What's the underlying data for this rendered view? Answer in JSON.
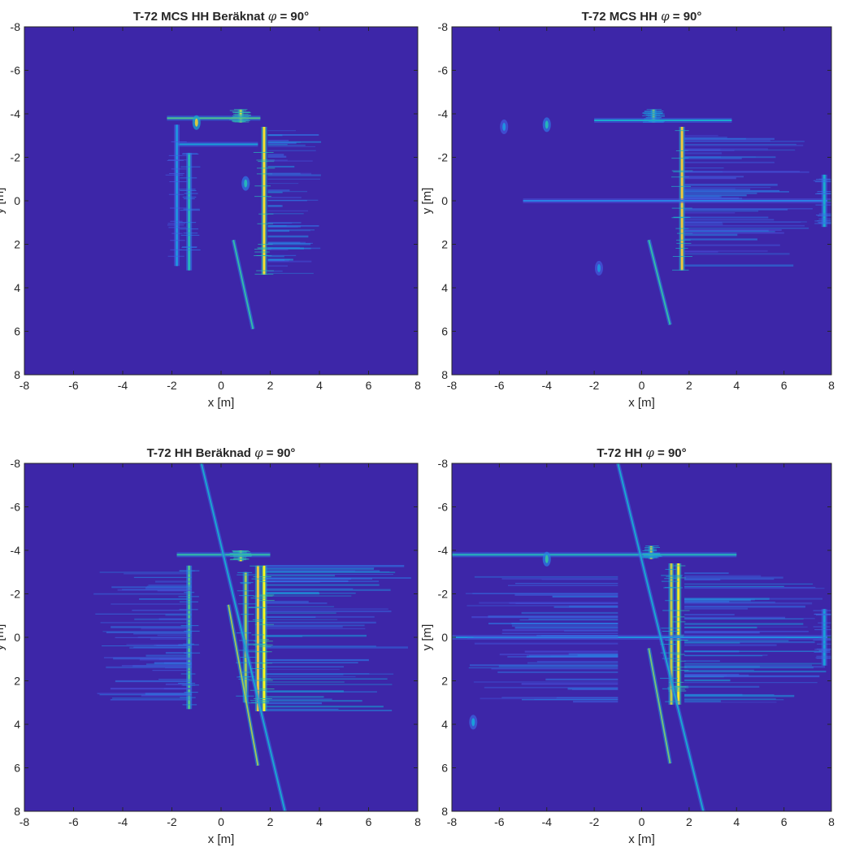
{
  "figure": {
    "background_color": "#ffffff",
    "plot_background_color": "#3d26a8",
    "colormap": [
      "#3d26a8",
      "#4a4bd9",
      "#2c7de8",
      "#14a7d5",
      "#38c29d",
      "#aeca4e",
      "#f2c83a",
      "#f9f920"
    ]
  },
  "chart_data": [
    {
      "type": "heatmap",
      "title_prefix": "T-72 MCS HH Beräknat ",
      "title_symbol": "φ",
      "title_suffix": " = 90°",
      "xlabel": "x [m]",
      "ylabel": "y [m]",
      "xlim": [
        -8,
        8
      ],
      "ylim": [
        -8,
        8
      ],
      "y_direction": "reversed",
      "xticks": [
        "-8",
        "-6",
        "-4",
        "-2",
        "0",
        "2",
        "4",
        "6",
        "8"
      ],
      "yticks": [
        "-8",
        "-6",
        "-4",
        "-2",
        "0",
        "2",
        "4",
        "6",
        "8"
      ],
      "features": [
        {
          "kind": "vline",
          "x": 1.75,
          "y": [
            -3.4,
            3.4
          ],
          "intensity": 0.92
        },
        {
          "kind": "vline",
          "x": 0.8,
          "y": [
            -4.2,
            -3.6
          ],
          "intensity": 0.95
        },
        {
          "kind": "hline",
          "y": -3.8,
          "x": [
            -2.2,
            1.6
          ],
          "intensity": 0.6
        },
        {
          "kind": "hline",
          "y": -2.6,
          "x": [
            -1.8,
            1.5
          ],
          "intensity": 0.4
        },
        {
          "kind": "vline",
          "x": -1.3,
          "y": [
            -2.2,
            3.2
          ],
          "intensity": 0.5
        },
        {
          "kind": "vline",
          "x": -1.8,
          "y": [
            -3.5,
            3.0
          ],
          "intensity": 0.35
        },
        {
          "kind": "line",
          "from": [
            0.5,
            1.8
          ],
          "to": [
            1.3,
            5.9
          ],
          "intensity": 0.55
        },
        {
          "kind": "blob",
          "x": -1.0,
          "y": -3.6,
          "intensity": 0.8
        },
        {
          "kind": "blob",
          "x": 1.0,
          "y": -0.8,
          "intensity": 0.5
        },
        {
          "kind": "flare",
          "x": 1.9,
          "y": [
            -3.4,
            3.4
          ],
          "extent": 2.2,
          "intensity": 0.35
        }
      ]
    },
    {
      "type": "heatmap",
      "title_prefix": "T-72 MCS HH ",
      "title_symbol": "φ",
      "title_suffix": " = 90°",
      "xlabel": "x [m]",
      "ylabel": "y [m]",
      "xlim": [
        -8,
        8
      ],
      "ylim": [
        -8,
        8
      ],
      "y_direction": "reversed",
      "xticks": [
        "-8",
        "-6",
        "-4",
        "-2",
        "0",
        "2",
        "4",
        "6",
        "8"
      ],
      "yticks": [
        "-8",
        "-6",
        "-4",
        "-2",
        "0",
        "2",
        "4",
        "6",
        "8"
      ],
      "features": [
        {
          "kind": "vline",
          "x": 1.7,
          "y": [
            -3.4,
            3.2
          ],
          "intensity": 0.85
        },
        {
          "kind": "vline",
          "x": 0.5,
          "y": [
            -4.2,
            -3.6
          ],
          "intensity": 0.7
        },
        {
          "kind": "hline",
          "y": -3.7,
          "x": [
            -2.0,
            3.8
          ],
          "intensity": 0.45
        },
        {
          "kind": "hline",
          "y": 0.0,
          "x": [
            -5.0,
            8.0
          ],
          "intensity": 0.3
        },
        {
          "kind": "line",
          "from": [
            0.3,
            1.8
          ],
          "to": [
            1.2,
            5.7
          ],
          "intensity": 0.55
        },
        {
          "kind": "blob",
          "x": -4.0,
          "y": -3.5,
          "intensity": 0.5
        },
        {
          "kind": "blob",
          "x": -5.8,
          "y": -3.4,
          "intensity": 0.35
        },
        {
          "kind": "blob",
          "x": -1.8,
          "y": 3.1,
          "intensity": 0.35
        },
        {
          "kind": "vline",
          "x": 7.7,
          "y": [
            -1.2,
            1.2
          ],
          "intensity": 0.45
        },
        {
          "kind": "flare",
          "x": 1.8,
          "y": [
            -3.0,
            3.0
          ],
          "extent": 5.5,
          "intensity": 0.3
        }
      ]
    },
    {
      "type": "heatmap",
      "title_prefix": "T-72 HH Beräknad ",
      "title_symbol": "φ",
      "title_suffix": " = 90°",
      "xlabel": "x [m]",
      "ylabel": "y [m]",
      "xlim": [
        -8,
        8
      ],
      "ylim": [
        -8,
        8
      ],
      "y_direction": "reversed",
      "xticks": [
        "-8",
        "-6",
        "-4",
        "-2",
        "0",
        "2",
        "4",
        "6",
        "8"
      ],
      "yticks": [
        "-8",
        "-6",
        "-4",
        "-2",
        "0",
        "2",
        "4",
        "6",
        "8"
      ],
      "features": [
        {
          "kind": "vline",
          "x": 1.75,
          "y": [
            -3.3,
            3.4
          ],
          "intensity": 1.0
        },
        {
          "kind": "vline",
          "x": 1.5,
          "y": [
            -3.3,
            3.4
          ],
          "intensity": 0.85
        },
        {
          "kind": "vline",
          "x": 0.8,
          "y": [
            -4.0,
            -3.5
          ],
          "intensity": 0.95
        },
        {
          "kind": "vline",
          "x": 1.0,
          "y": [
            -3.0,
            3.0
          ],
          "intensity": 0.7
        },
        {
          "kind": "vline",
          "x": -1.3,
          "y": [
            -3.3,
            3.3
          ],
          "intensity": 0.6
        },
        {
          "kind": "hline",
          "y": -3.8,
          "x": [
            -1.8,
            2.0
          ],
          "intensity": 0.55
        },
        {
          "kind": "line",
          "from": [
            -0.8,
            -8.0
          ],
          "to": [
            2.6,
            8.0
          ],
          "intensity": 0.45
        },
        {
          "kind": "line",
          "from": [
            0.3,
            -1.5
          ],
          "to": [
            1.5,
            5.9
          ],
          "intensity": 0.7
        },
        {
          "kind": "flare",
          "x": 1.8,
          "y": [
            -3.3,
            3.4
          ],
          "extent": 6.0,
          "intensity": 0.4
        },
        {
          "kind": "flare_left",
          "x": -1.2,
          "y": [
            -3.0,
            3.0
          ],
          "extent": 4.0,
          "intensity": 0.3
        }
      ]
    },
    {
      "type": "heatmap",
      "title_prefix": "T-72 HH ",
      "title_symbol": "φ",
      "title_suffix": " = 90°",
      "xlabel": "x [m]",
      "ylabel": "y [m]",
      "xlim": [
        -8,
        8
      ],
      "ylim": [
        -8,
        8
      ],
      "y_direction": "reversed",
      "xticks": [
        "-8",
        "-6",
        "-4",
        "-2",
        "0",
        "2",
        "4",
        "6",
        "8"
      ],
      "yticks": [
        "-8",
        "-6",
        "-4",
        "-2",
        "0",
        "2",
        "4",
        "6",
        "8"
      ],
      "features": [
        {
          "kind": "vline",
          "x": 1.55,
          "y": [
            -3.4,
            3.1
          ],
          "intensity": 0.95
        },
        {
          "kind": "vline",
          "x": 1.25,
          "y": [
            -3.4,
            3.1
          ],
          "intensity": 0.75
        },
        {
          "kind": "vline",
          "x": 0.4,
          "y": [
            -4.2,
            -3.6
          ],
          "intensity": 0.8
        },
        {
          "kind": "hline",
          "y": -3.8,
          "x": [
            -8.0,
            4.0
          ],
          "intensity": 0.5
        },
        {
          "kind": "hline",
          "y": 0.0,
          "x": [
            -8.0,
            8.0
          ],
          "intensity": 0.35
        },
        {
          "kind": "line",
          "from": [
            -1.0,
            -8.0
          ],
          "to": [
            2.6,
            8.0
          ],
          "intensity": 0.45
        },
        {
          "kind": "line",
          "from": [
            0.3,
            0.5
          ],
          "to": [
            1.2,
            5.8
          ],
          "intensity": 0.65
        },
        {
          "kind": "blob",
          "x": -4.0,
          "y": -3.6,
          "intensity": 0.55
        },
        {
          "kind": "blob",
          "x": -7.1,
          "y": 3.9,
          "intensity": 0.4
        },
        {
          "kind": "vline",
          "x": 7.7,
          "y": [
            -1.3,
            1.3
          ],
          "intensity": 0.4
        },
        {
          "kind": "flare",
          "x": 1.8,
          "y": [
            -3.0,
            3.0
          ],
          "extent": 6.0,
          "intensity": 0.4
        },
        {
          "kind": "flare_left",
          "x": -1.0,
          "y": [
            -3.0,
            3.0
          ],
          "extent": 6.5,
          "intensity": 0.3
        }
      ]
    }
  ]
}
